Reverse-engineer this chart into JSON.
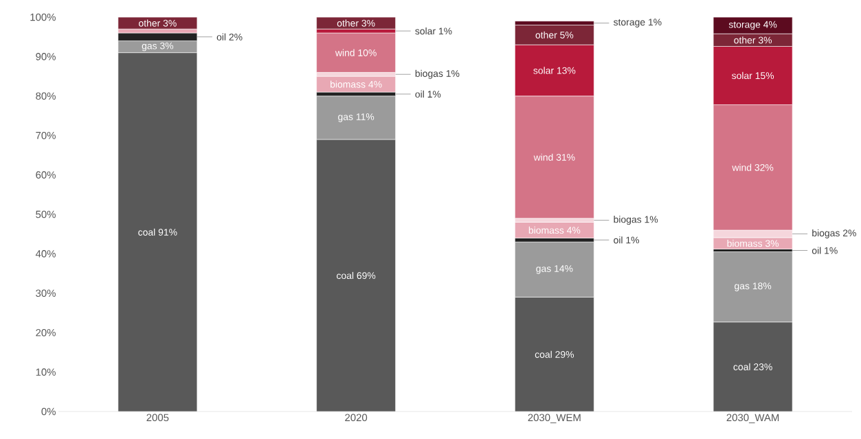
{
  "chart_data": {
    "type": "bar",
    "stacked": true,
    "categories": [
      "2005",
      "2020",
      "2030_WEM",
      "2030_WAM"
    ],
    "ylim": [
      0,
      100
    ],
    "yticks": [
      {
        "value": 0,
        "label": "0%"
      },
      {
        "value": 10,
        "label": "10%"
      },
      {
        "value": 20,
        "label": "20%"
      },
      {
        "value": 30,
        "label": "30%"
      },
      {
        "value": 40,
        "label": "40%"
      },
      {
        "value": 50,
        "label": "50%"
      },
      {
        "value": 60,
        "label": "60%"
      },
      {
        "value": 70,
        "label": "70%"
      },
      {
        "value": 80,
        "label": "80%"
      },
      {
        "value": 90,
        "label": "90%"
      },
      {
        "value": 100,
        "label": "100%"
      }
    ],
    "grid": false,
    "series": [
      {
        "color": "#595959",
        "values": [
          91,
          69,
          29,
          22.7
        ],
        "value_labels": [
          "coal 91%",
          "coal 69%",
          "coal 29%",
          "coal 23%"
        ]
      },
      {
        "color": "#9b9b9b",
        "values": [
          3,
          11,
          14,
          17.8
        ],
        "value_labels": [
          "gas 3%",
          "gas 11%",
          "gas 14%",
          "gas 18%"
        ]
      },
      {
        "color": "#222222",
        "values": [
          2,
          1,
          1,
          0.7
        ],
        "value_labels": [
          "oil 2%",
          "oil 1%",
          "oil 1%",
          "oil 1%"
        ]
      },
      {
        "color": "#e8a8b4",
        "values": [
          1,
          4,
          4,
          2.9
        ],
        "value_labels": [
          null,
          "biomass 4%",
          "biomass 4%",
          "biomass 3%"
        ]
      },
      {
        "color": "#f5d6dc",
        "values": [
          null,
          1,
          1,
          1.9
        ],
        "value_labels": [
          null,
          "biogas 1%",
          "biogas 1%",
          "biogas 2%"
        ]
      },
      {
        "color": "#d47487",
        "values": [
          null,
          10,
          31,
          31.8
        ],
        "value_labels": [
          null,
          "wind 10%",
          "wind 31%",
          "wind 32%"
        ]
      },
      {
        "color": "#b81a3b",
        "values": [
          null,
          1,
          13,
          14.8
        ],
        "value_labels": [
          null,
          "solar 1%",
          "solar 13%",
          "solar 15%"
        ]
      },
      {
        "color": "#7c2637",
        "values": [
          3,
          3,
          5,
          3.2
        ],
        "value_labels": [
          "other 3%",
          "other 3%",
          "other 5%",
          "other 3%"
        ]
      },
      {
        "color": "#5c0b1f",
        "values": [
          null,
          null,
          1,
          4.2
        ],
        "value_labels": [
          null,
          null,
          "storage 1%",
          "storage 4%"
        ]
      }
    ]
  }
}
